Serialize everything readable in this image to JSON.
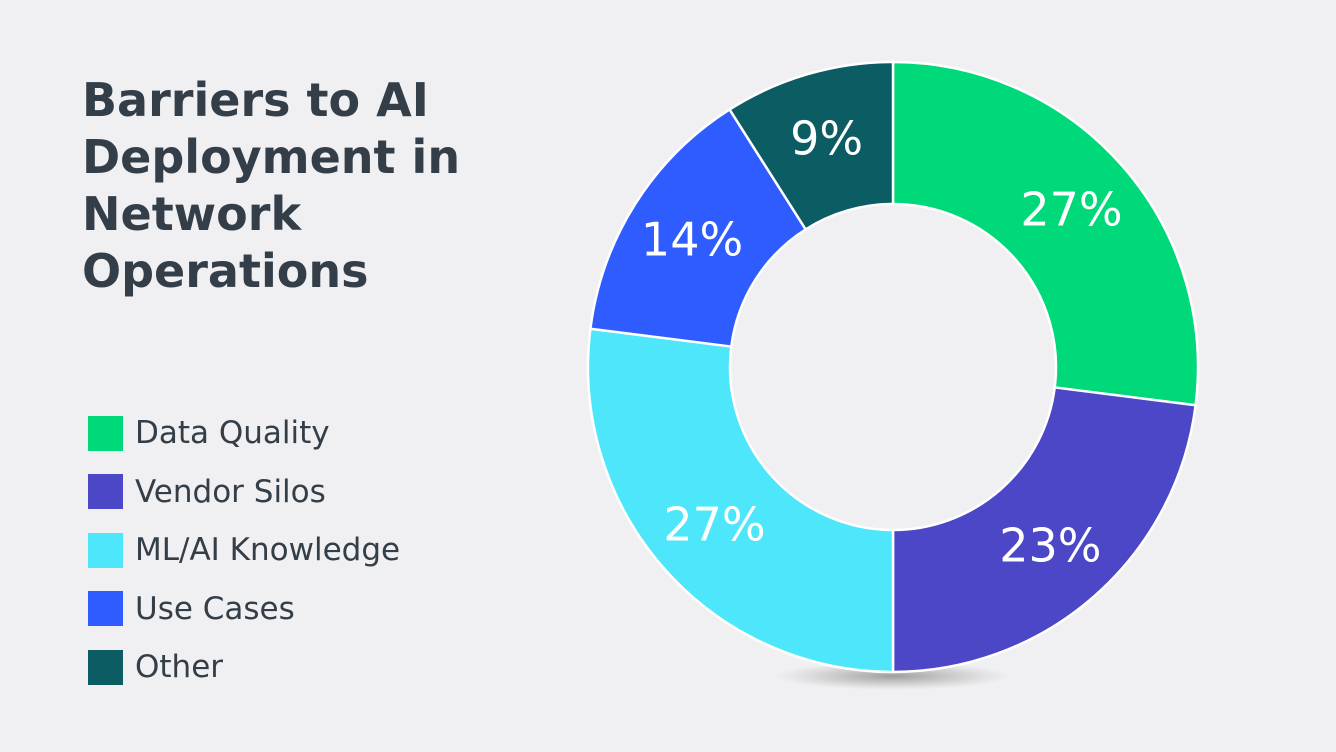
{
  "chart_data": {
    "type": "pie",
    "title_lines": [
      "Barriers to AI",
      "Deployment in",
      "Network",
      "Operations"
    ],
    "categories": [
      "Data Quality",
      "Vendor Silos",
      "ML/AI Knowledge",
      "Use Cases",
      "Other"
    ],
    "values": [
      27,
      23,
      27,
      14,
      9
    ],
    "data_labels": [
      "27%",
      "23%",
      "27%",
      "14%",
      "9%"
    ],
    "colors": [
      "#00d97a",
      "#4b47c6",
      "#4de6fb",
      "#2f5cff",
      "#0b5c63"
    ],
    "legend_placement": "left",
    "donut": true
  }
}
